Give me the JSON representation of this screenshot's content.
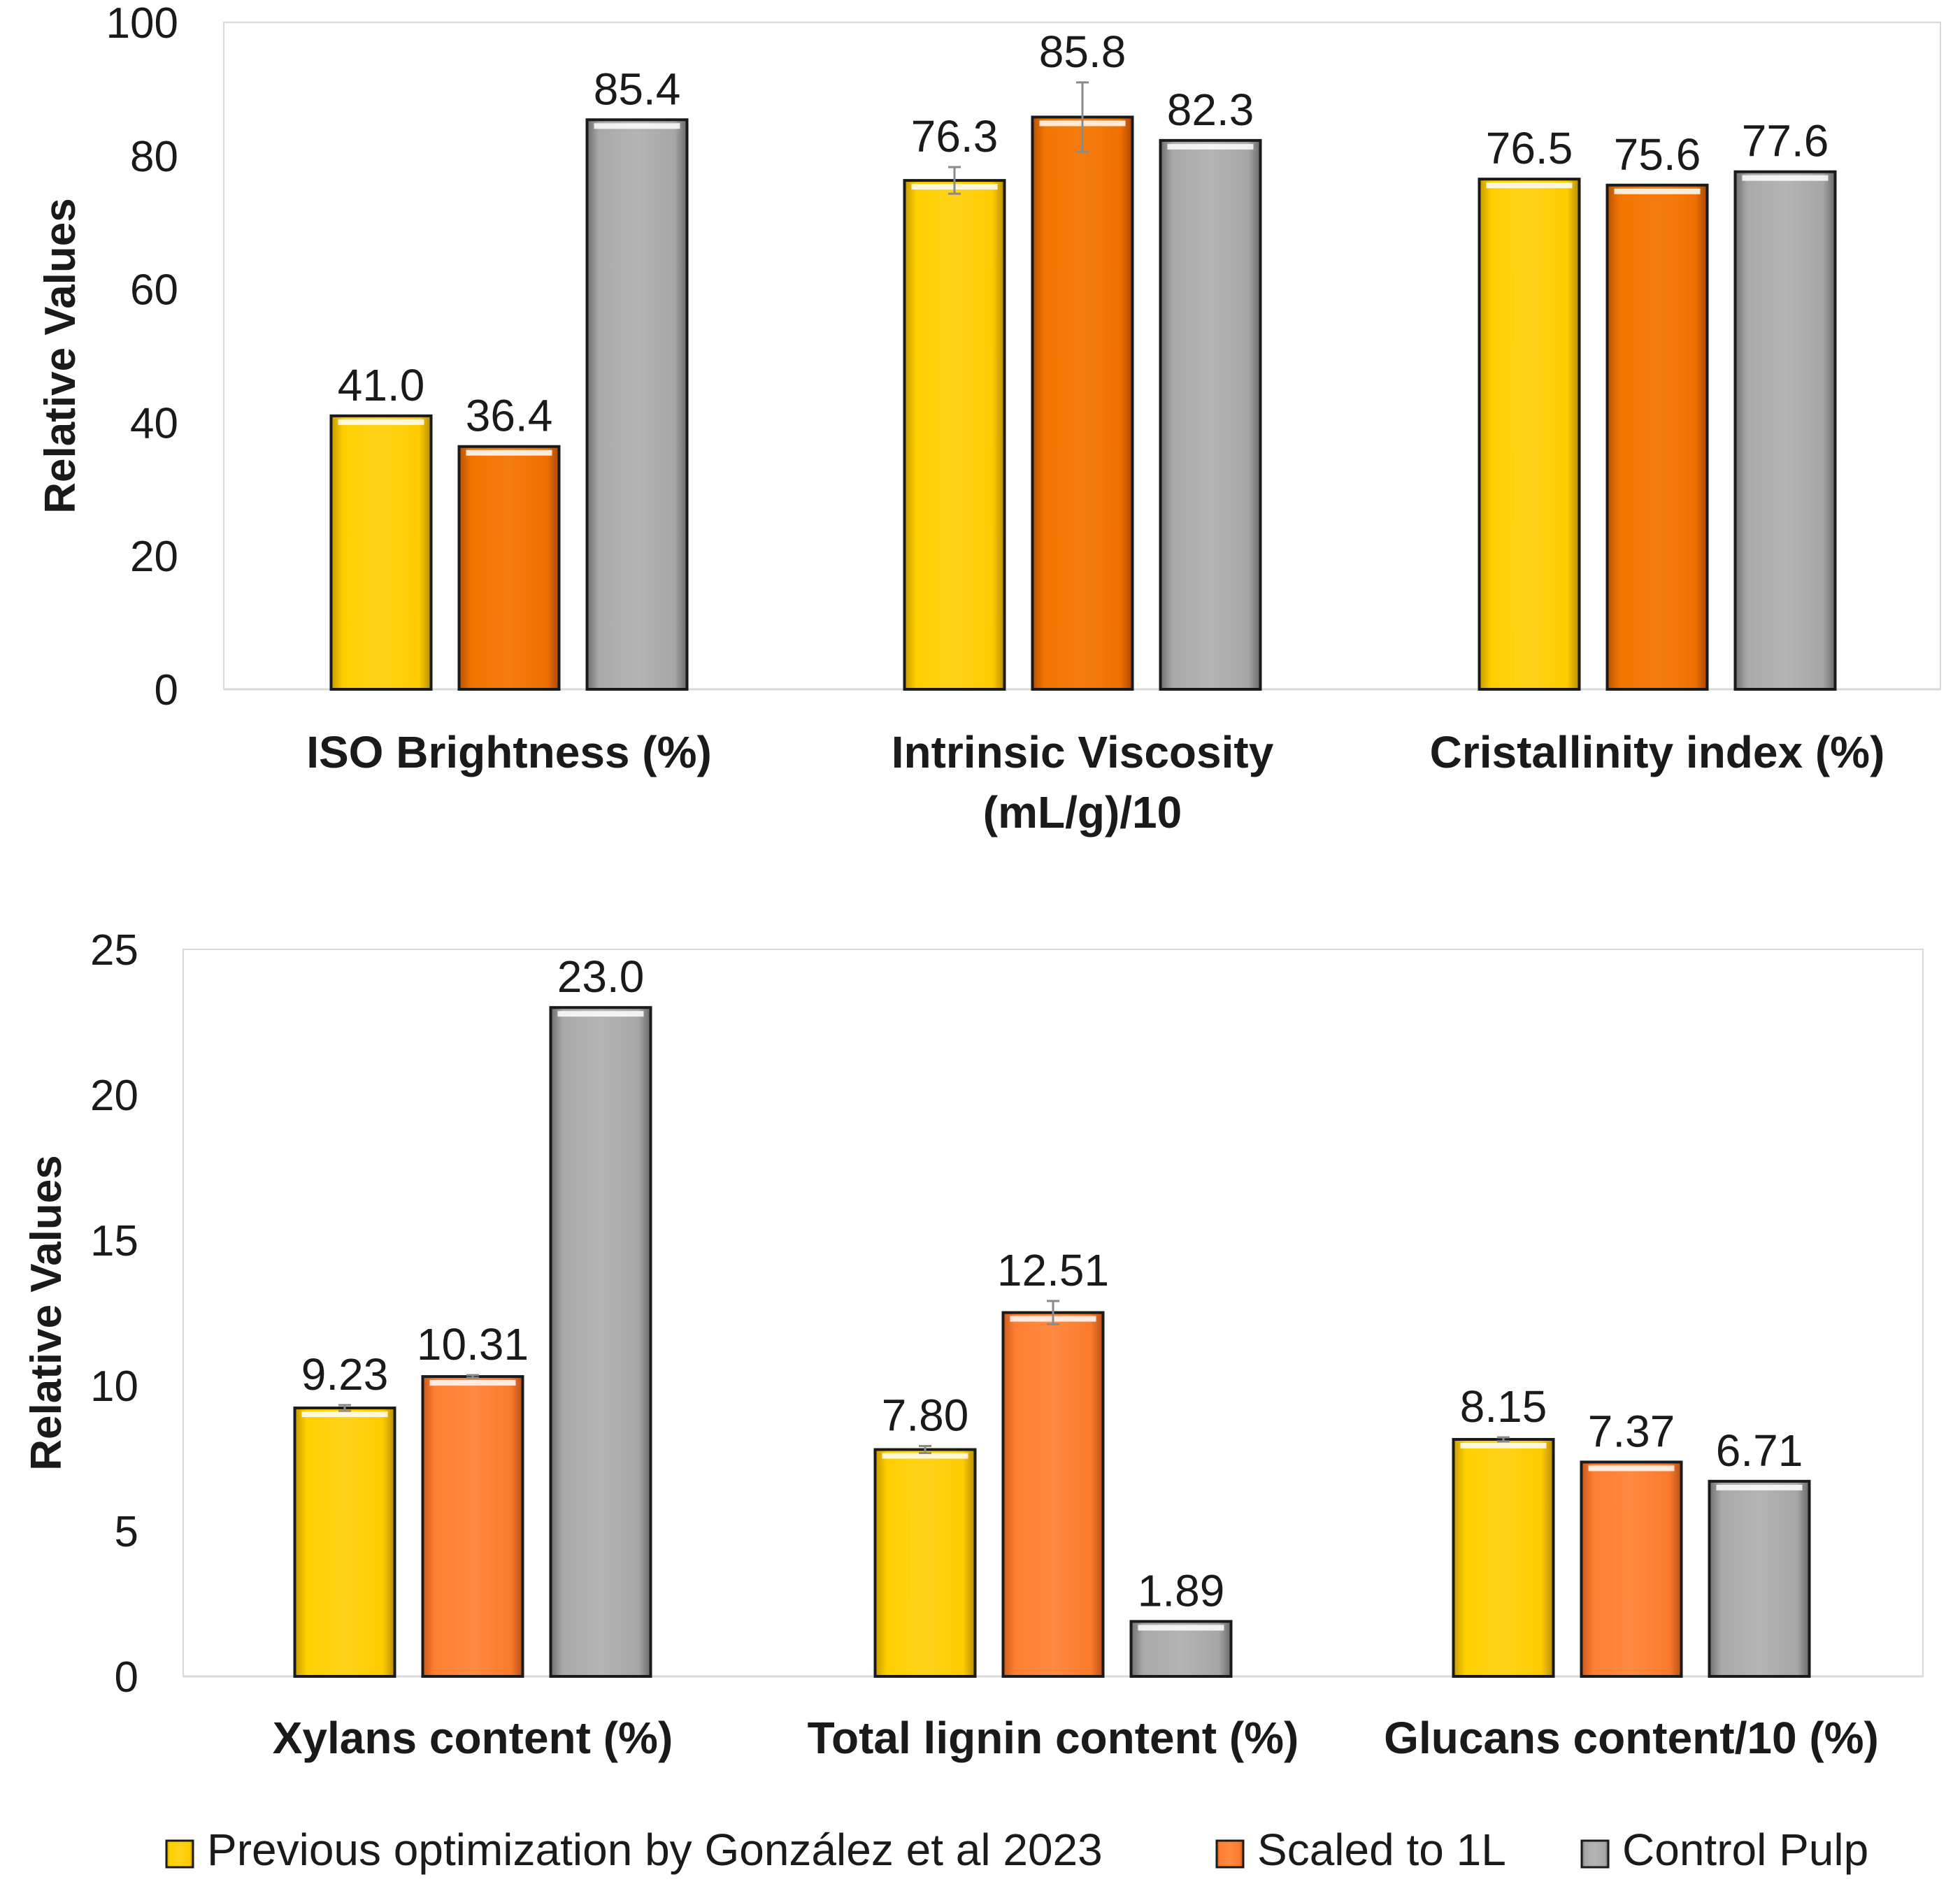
{
  "colors": {
    "previous": "#ffcc00",
    "scaled_top": "#f07000",
    "scaled_bottom": "#ff7d30",
    "control": "#a8a8a8",
    "outline": "#1a1a1a",
    "axis": "#d9d9d9",
    "errorbar": "#8a8a8a"
  },
  "legend": [
    {
      "key": "previous",
      "label": "Previous optimization by González et al 2023"
    },
    {
      "key": "scaled",
      "label": "Scaled to 1L"
    },
    {
      "key": "control",
      "label": "Control Pulp"
    }
  ],
  "chart_data": [
    {
      "type": "bar",
      "title": "",
      "ylabel": "Relative Values",
      "xlabel": "",
      "ylim": [
        0,
        100
      ],
      "yticks": [
        0,
        20,
        40,
        60,
        80,
        100
      ],
      "grid": false,
      "categories": [
        [
          "ISO Brightness (%)"
        ],
        [
          "Intrinsic Viscosity",
          "(mL/g)/10"
        ],
        [
          "Cristallinity index (%)"
        ]
      ],
      "series": [
        {
          "name": "Previous optimization by González et al 2023",
          "values": [
            41.0,
            76.3,
            76.5
          ],
          "labels": [
            "41.0",
            "76.3",
            "76.5"
          ],
          "errors": [
            0,
            2.0,
            0
          ]
        },
        {
          "name": "Scaled to 1L",
          "values": [
            36.4,
            85.8,
            75.6
          ],
          "labels": [
            "36.4",
            "85.8",
            "75.6"
          ],
          "errors": [
            0,
            5.2,
            0
          ]
        },
        {
          "name": "Control Pulp",
          "values": [
            85.4,
            82.3,
            77.6
          ],
          "labels": [
            "85.4",
            "82.3",
            "77.6"
          ],
          "errors": [
            0,
            0,
            0
          ]
        }
      ]
    },
    {
      "type": "bar",
      "title": "",
      "ylabel": "Relative Values",
      "xlabel": "",
      "ylim": [
        0,
        25
      ],
      "yticks": [
        0,
        5,
        10,
        15,
        20,
        25
      ],
      "grid": false,
      "categories": [
        [
          "Xylans content (%)"
        ],
        [
          "Total lignin content (%)"
        ],
        [
          "Glucans content/10 (%)"
        ]
      ],
      "series": [
        {
          "name": "Previous optimization by González et al 2023",
          "values": [
            9.23,
            7.8,
            8.15
          ],
          "labels": [
            "9.23",
            "7.80",
            "8.15"
          ],
          "errors": [
            0.1,
            0.12,
            0.07
          ]
        },
        {
          "name": "Scaled to 1L",
          "values": [
            10.31,
            12.51,
            7.37
          ],
          "labels": [
            "10.31",
            "12.51",
            "7.37"
          ],
          "errors": [
            0.05,
            0.4,
            0
          ]
        },
        {
          "name": "Control Pulp",
          "values": [
            23.0,
            1.89,
            6.71
          ],
          "labels": [
            "23.0",
            "1.89",
            "6.71"
          ],
          "errors": [
            0,
            0,
            0
          ]
        }
      ]
    }
  ]
}
